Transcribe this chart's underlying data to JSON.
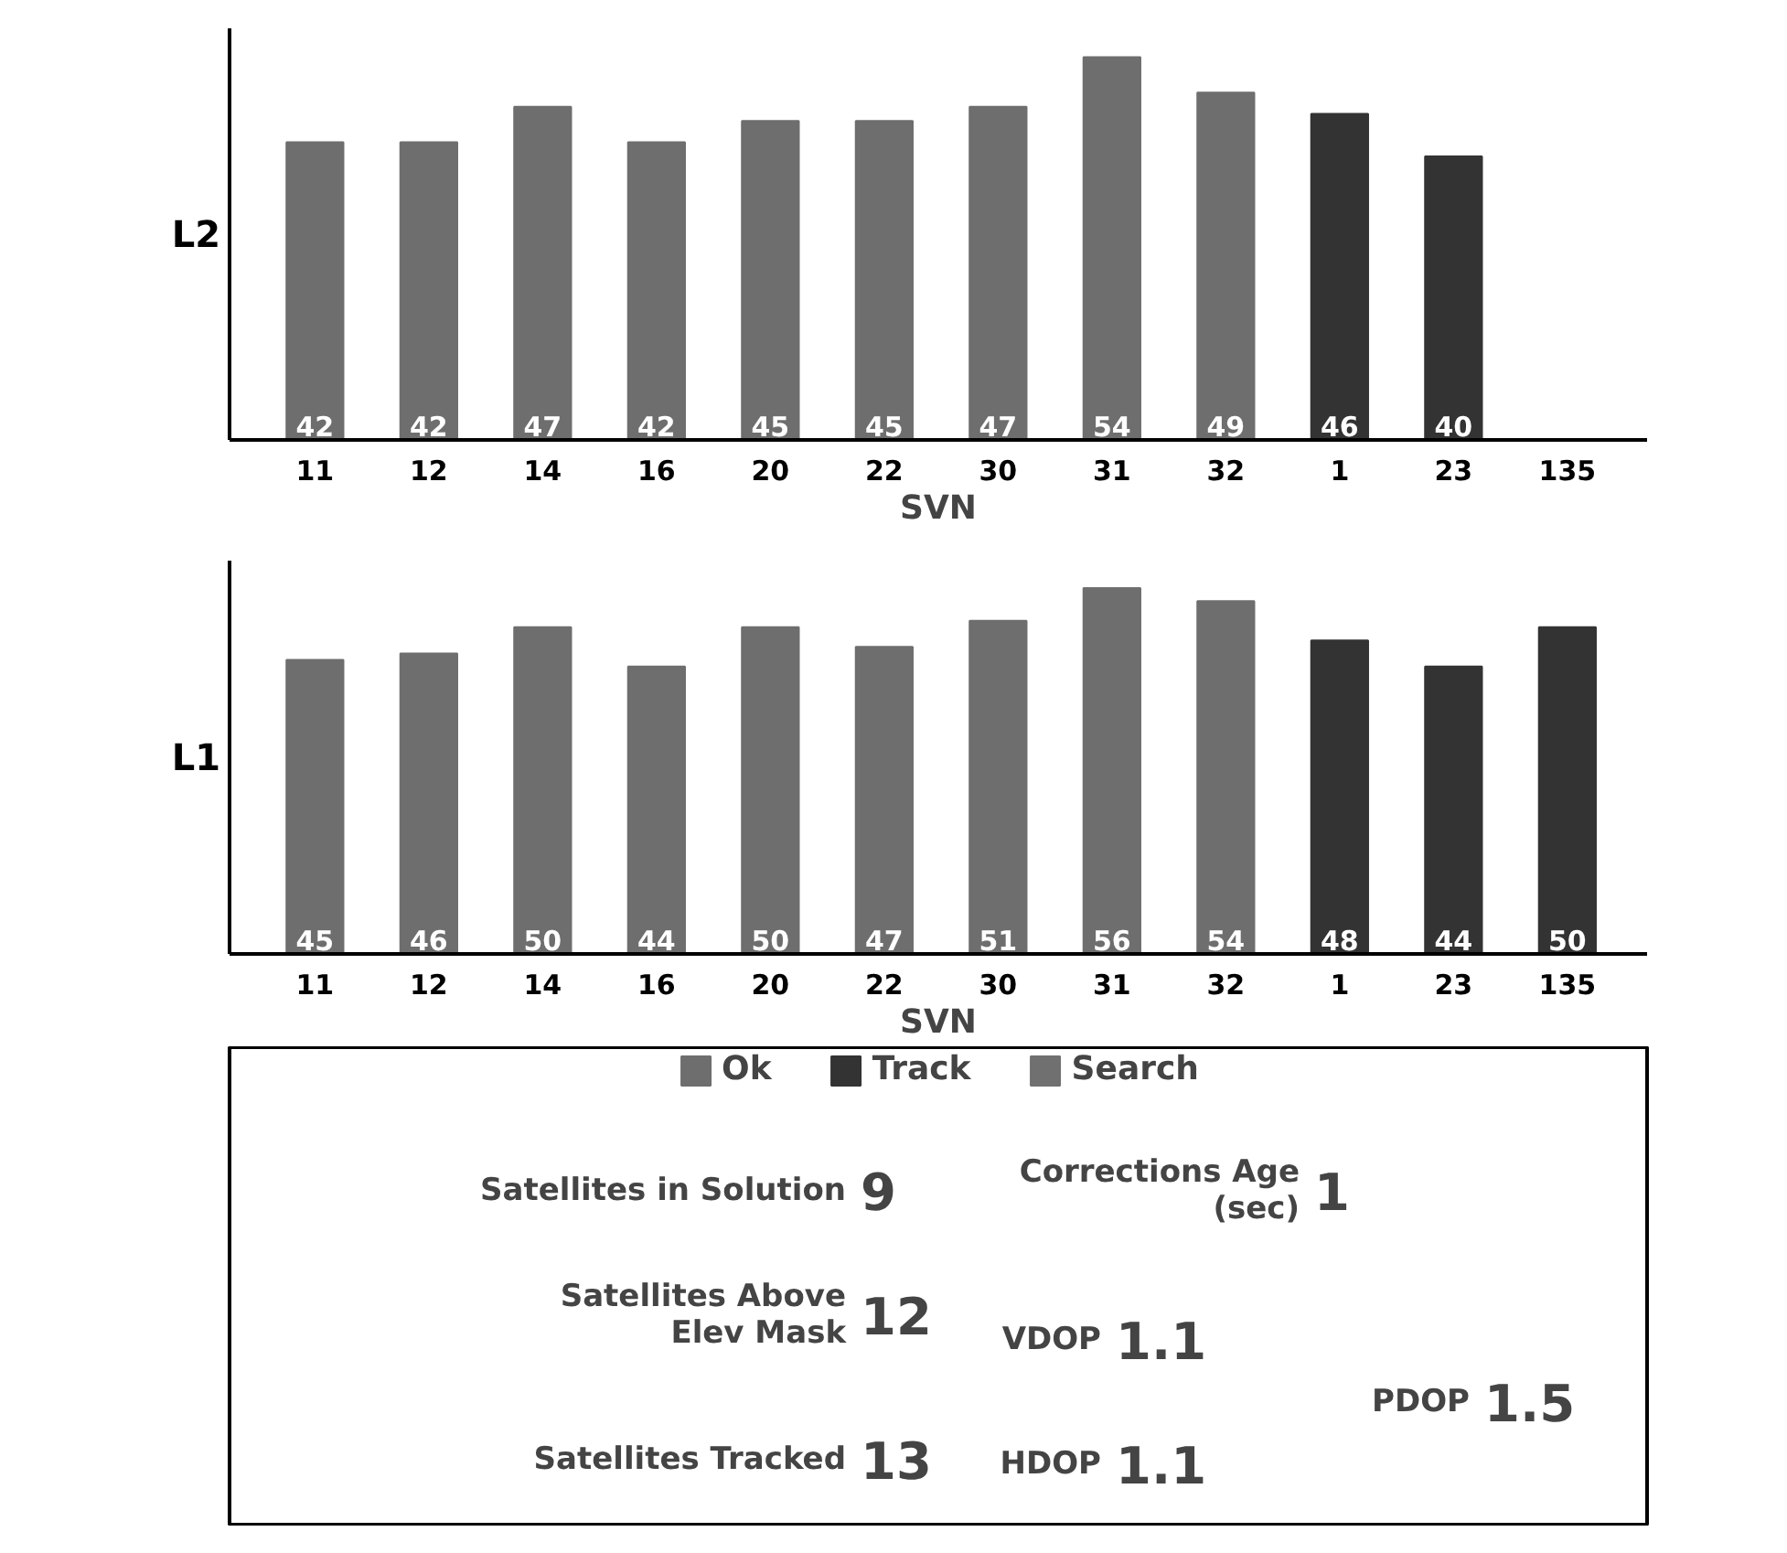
{
  "chart_data": [
    {
      "type": "bar",
      "ylabel": "L2",
      "xlabel": "SVN",
      "categories": [
        "11",
        "12",
        "14",
        "16",
        "20",
        "22",
        "30",
        "31",
        "32",
        "1",
        "23",
        "135"
      ],
      "values": [
        42,
        42,
        47,
        42,
        45,
        45,
        47,
        54,
        49,
        46,
        40,
        null
      ],
      "colors": [
        "#6e6e6e",
        "#6e6e6e",
        "#6e6e6e",
        "#6e6e6e",
        "#6e6e6e",
        "#6e6e6e",
        "#6e6e6e",
        "#6e6e6e",
        "#6e6e6e",
        "#333333",
        "#333333",
        "#333333"
      ],
      "data_labels": true,
      "tick_labels": "x"
    },
    {
      "type": "bar",
      "ylabel": "L1",
      "xlabel": "SVN",
      "categories": [
        "11",
        "12",
        "14",
        "16",
        "20",
        "22",
        "30",
        "31",
        "32",
        "1",
        "23",
        "135"
      ],
      "series": [
        {
          "name": "Ok",
          "color": "#6e6e6e",
          "values": [
            45,
            46,
            50,
            44,
            50,
            47,
            51,
            56,
            54,
            null,
            null,
            null
          ]
        },
        {
          "name": "Track",
          "color": "#333333",
          "values": [
            null,
            null,
            null,
            null,
            null,
            null,
            null,
            null,
            null,
            48,
            44,
            50
          ]
        },
        {
          "name": "Search",
          "color": "#707070",
          "values": [
            null,
            null,
            null,
            null,
            null,
            null,
            null,
            null,
            null,
            null,
            null,
            null
          ]
        }
      ],
      "data_labels": true,
      "tick_labels": "x",
      "legend": "bottom"
    },
    {
      "type": "other",
      "annotations": [
        "Satellites in Solution",
        "9",
        "Satellites Above\nElev Mask",
        "12",
        "Satellites Tracked",
        "13",
        "Corrections Age\n(sec)",
        "1",
        "VDOP",
        "1.1",
        "HDOP",
        "1.1",
        "PDOP",
        "1.5"
      ]
    }
  ]
}
